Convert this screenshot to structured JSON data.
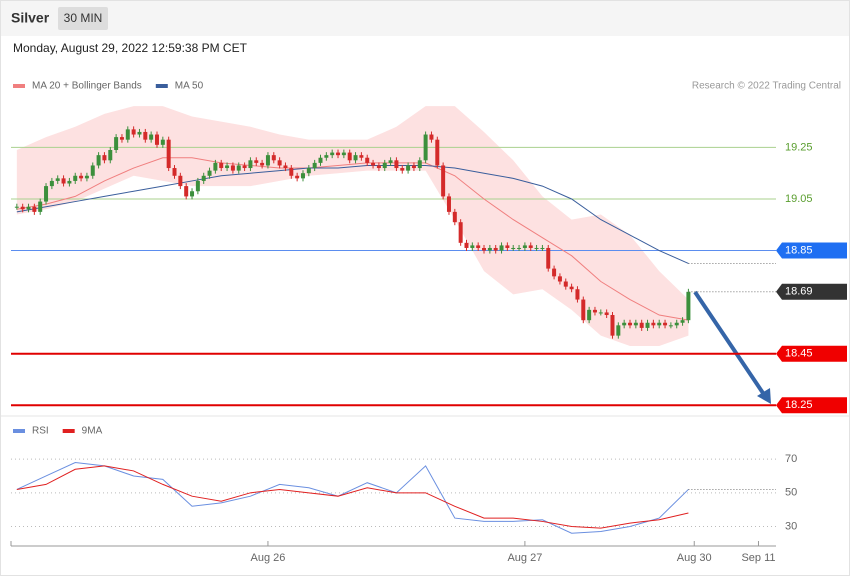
{
  "header": {
    "symbol": "Silver",
    "interval": "30 MIN",
    "timestamp": "Monday, August 29, 2022 12:59:38 PM CET",
    "source": "Research © 2022 Trading Central"
  },
  "chart_data": [
    {
      "type": "candlestick",
      "up_color": "#3c8f3c",
      "down_color": "#d42a2a",
      "closes": [
        19.02,
        19.01,
        19.02,
        19.0,
        19.04,
        19.1,
        19.12,
        19.13,
        19.11,
        19.12,
        19.14,
        19.13,
        19.14,
        19.18,
        19.22,
        19.2,
        19.24,
        19.29,
        19.28,
        19.32,
        19.3,
        19.31,
        19.28,
        19.3,
        19.26,
        19.28,
        19.17,
        19.14,
        19.1,
        19.06,
        19.08,
        19.12,
        19.14,
        19.16,
        19.19,
        19.17,
        19.18,
        19.16,
        19.18,
        19.17,
        19.2,
        19.19,
        19.18,
        19.22,
        19.2,
        19.18,
        19.17,
        19.14,
        19.13,
        19.15,
        19.17,
        19.19,
        19.21,
        19.22,
        19.23,
        19.22,
        19.23,
        19.2,
        19.22,
        19.21,
        19.19,
        19.18,
        19.17,
        19.19,
        19.2,
        19.17,
        19.16,
        19.18,
        19.17,
        19.2,
        19.3,
        19.28,
        19.18,
        19.06,
        19.0,
        18.96,
        18.88,
        18.86,
        18.87,
        18.86,
        18.85,
        18.86,
        18.85,
        18.87,
        18.86,
        18.86,
        18.86,
        18.87,
        18.86,
        18.86,
        18.86,
        18.78,
        18.75,
        18.73,
        18.71,
        18.7,
        18.66,
        18.58,
        18.62,
        18.61,
        18.61,
        18.6,
        18.52,
        18.56,
        18.57,
        18.56,
        18.57,
        18.55,
        18.57,
        18.56,
        18.57,
        18.56,
        18.56,
        18.57,
        18.58,
        18.69
      ],
      "x": [
        0,
        5,
        10,
        15,
        20,
        25,
        30,
        35,
        40,
        45,
        50,
        55,
        60,
        65,
        70,
        75,
        80,
        85,
        90,
        95,
        100,
        105,
        110,
        115
      ],
      "series": [
        {
          "name": "MA 20 + Bollinger Bands",
          "color": "#f07f7f",
          "band_color": "#fde1e1",
          "values": [
            19.01,
            19.03,
            19.06,
            19.12,
            19.17,
            19.21,
            19.21,
            19.19,
            19.18,
            19.17,
            19.17,
            19.18,
            19.19,
            19.19,
            19.19,
            19.14,
            19.05,
            18.97,
            18.9,
            18.83,
            18.73,
            18.66,
            18.6,
            18.58
          ],
          "upper": [
            19.24,
            19.29,
            19.33,
            19.38,
            19.41,
            19.41,
            19.37,
            19.35,
            19.33,
            19.3,
            19.28,
            19.28,
            19.28,
            19.33,
            19.41,
            19.41,
            19.31,
            19.2,
            19.06,
            18.97,
            18.99,
            18.91,
            18.77,
            18.66
          ],
          "lower": [
            18.99,
            19.01,
            19.04,
            19.09,
            19.14,
            19.12,
            19.1,
            19.1,
            19.1,
            19.12,
            19.14,
            19.15,
            19.16,
            19.16,
            19.16,
            18.97,
            18.77,
            18.68,
            18.7,
            18.62,
            18.52,
            18.48,
            18.48,
            18.52
          ]
        },
        {
          "name": "MA 50",
          "color": "#3a5e9c",
          "values": [
            19.0,
            19.02,
            19.04,
            19.06,
            19.08,
            19.1,
            19.12,
            19.14,
            19.15,
            19.16,
            19.17,
            19.17,
            19.18,
            19.18,
            19.18,
            19.17,
            19.15,
            19.13,
            19.1,
            19.05,
            18.97,
            18.91,
            18.85,
            18.8
          ]
        }
      ],
      "levels": [
        {
          "value": 19.25,
          "color": "#a9d18e",
          "text_color": "#5a9e2f",
          "width": 1,
          "box": false
        },
        {
          "value": 19.05,
          "color": "#a9d18e",
          "text_color": "#5a9e2f",
          "width": 1,
          "box": false
        },
        {
          "value": 18.85,
          "color": "#5b8def",
          "text_color": "#ffffff",
          "box_color": "#1f6ff2",
          "width": 1,
          "box": true
        },
        {
          "value": 18.45,
          "color": "#e00000",
          "text_color": "#ffffff",
          "box_color": "#f00000",
          "width": 2,
          "box": true
        },
        {
          "value": 18.25,
          "color": "#e00000",
          "text_color": "#ffffff",
          "box_color": "#f00000",
          "width": 2,
          "box": true
        }
      ],
      "last_box_color": "#333333",
      "xlim": [
        -1,
        130
      ],
      "ylim": [
        18.22,
        19.43
      ]
    },
    {
      "type": "line",
      "x": [
        0,
        5,
        10,
        15,
        20,
        25,
        30,
        35,
        40,
        45,
        50,
        55,
        60,
        65,
        70,
        75,
        80,
        85,
        90,
        95,
        100,
        105,
        110,
        115
      ],
      "series": [
        {
          "name": "RSI",
          "color": "#6a8fe0",
          "values": [
            52,
            60,
            68,
            66,
            60,
            58,
            42,
            44,
            48,
            55,
            53,
            48,
            56,
            50,
            66,
            35,
            33,
            33,
            34,
            26,
            27,
            30,
            35,
            52
          ]
        },
        {
          "name": "9MA",
          "color": "#e02020",
          "values": [
            52,
            55,
            64,
            66,
            63,
            55,
            48,
            45,
            50,
            52,
            50,
            48,
            53,
            50,
            50,
            42,
            35,
            35,
            33,
            30,
            29,
            32,
            34,
            38
          ]
        }
      ],
      "xlim": [
        -1,
        130
      ],
      "ylim": [
        19,
        79
      ],
      "yticks": [
        70,
        50,
        30
      ],
      "grid": true,
      "xticks": [
        {
          "value": 43,
          "label": "Aug 26"
        },
        {
          "value": 87,
          "label": "Aug 27"
        },
        {
          "value": 116,
          "label": "Aug 30"
        },
        {
          "value": 127,
          "label": "Sep 11"
        }
      ]
    }
  ]
}
